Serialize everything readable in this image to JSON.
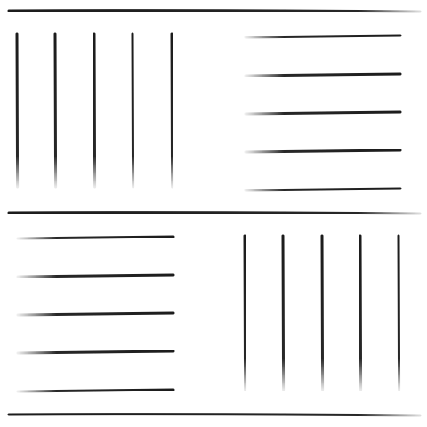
{
  "artwork": {
    "ink_color": "#1c1c1c",
    "background_color": "#ffffff",
    "rule_count": 3,
    "panel_pattern": [
      "vertical-strokes",
      "horizontal-strokes",
      "horizontal-strokes",
      "vertical-strokes"
    ],
    "strokes_per_panel": 5
  }
}
